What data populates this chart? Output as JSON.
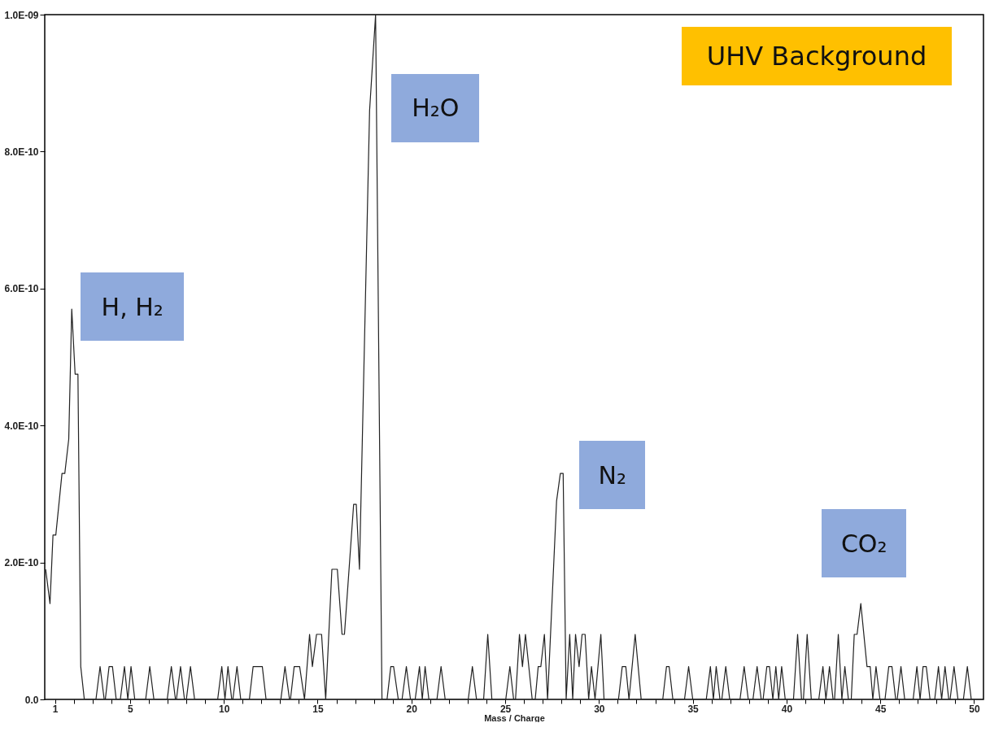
{
  "chart_data": {
    "type": "line",
    "xlabel": "Mass / Charge",
    "annotations": [
      "UHV Background",
      {
        "text": "H, H₂",
        "x": 1.89,
        "y": 5.7e-10
      },
      {
        "text": "H₂O",
        "x": 17.77,
        "y": 8.6e-10
      },
      {
        "text": "N₂",
        "x": 28.09,
        "y": 3.3e-10
      },
      {
        "text": "CO₂",
        "x": 43.96,
        "y": 1.4e-10
      }
    ],
    "x": [
      0.5,
      0.73,
      0.89,
      1.04,
      1.37,
      1.52,
      1.73,
      1.89,
      2.07,
      2.22,
      2.37,
      2.56,
      3.18,
      3.4,
      3.62,
      3.68,
      3.88,
      4.06,
      4.26,
      4.48,
      4.7,
      4.88,
      5.05,
      5.25,
      5.83,
      6.05,
      6.27,
      6.98,
      7.2,
      7.42,
      7.47,
      7.69,
      7.9,
      8.0,
      8.22,
      8.44,
      9.67,
      9.89,
      10.06,
      10.22,
      10.42,
      10.48,
      10.7,
      10.9,
      11.36,
      11.56,
      12.05,
      12.25,
      13.04,
      13.26,
      13.5,
      13.55,
      13.75,
      14.04,
      14.3,
      14.57,
      14.72,
      14.94,
      15.21,
      15.43,
      15.76,
      16.05,
      16.3,
      16.43,
      16.92,
      17.06,
      17.23,
      17.77,
      18.09,
      18.43,
      18.7,
      18.9,
      19.05,
      19.3,
      19.5,
      19.73,
      19.95,
      20.2,
      20.43,
      20.58,
      20.73,
      20.93,
      21.36,
      21.58,
      21.8,
      23.03,
      23.25,
      23.47,
      23.85,
      24.07,
      24.29,
      25.03,
      25.25,
      25.45,
      25.55,
      25.76,
      25.92,
      26.08,
      26.44,
      26.6,
      26.76,
      26.9,
      27.09,
      27.26,
      27.74,
      27.94,
      28.09,
      28.25,
      28.44,
      28.6,
      28.75,
      28.94,
      29.1,
      29.26,
      29.45,
      29.6,
      29.79,
      30.1,
      30.27,
      31.04,
      31.24,
      31.43,
      31.6,
      31.93,
      32.25,
      33.4,
      33.6,
      33.74,
      33.94,
      34.56,
      34.78,
      35.0,
      35.72,
      35.94,
      36.1,
      36.25,
      36.45,
      36.55,
      36.76,
      36.97,
      37.52,
      37.74,
      37.96,
      38.21,
      38.43,
      38.65,
      38.75,
      38.95,
      39.09,
      39.27,
      39.43,
      39.58,
      39.74,
      39.93,
      40.37,
      40.59,
      40.8,
      40.9,
      41.1,
      41.32,
      41.72,
      41.94,
      42.1,
      42.29,
      42.48,
      42.56,
      42.76,
      42.95,
      43.11,
      43.3,
      43.45,
      43.61,
      43.76,
      43.96,
      44.29,
      44.46,
      44.6,
      44.77,
      44.98,
      45.25,
      45.45,
      45.62,
      45.82,
      45.9,
      46.1,
      46.3,
      46.75,
      46.95,
      47.12,
      47.28,
      47.45,
      47.65,
      47.9,
      48.1,
      48.27,
      48.45,
      48.65,
      48.72,
      48.93,
      49.14,
      49.43,
      49.64,
      49.85,
      50.47
    ],
    "series": [
      {
        "color": "#222222",
        "values": [
          1.9e-10,
          1.4e-10,
          2.4e-10,
          2.4e-10,
          3.3e-10,
          3.3e-10,
          3.8e-10,
          5.7e-10,
          4.75e-10,
          4.75e-10,
          4.8e-11,
          0,
          0,
          4.8e-11,
          0,
          0,
          4.8e-11,
          4.8e-11,
          0,
          0,
          4.8e-11,
          0,
          4.8e-11,
          0,
          0,
          4.8e-11,
          0,
          0,
          4.8e-11,
          0,
          0,
          4.8e-11,
          0,
          0,
          4.8e-11,
          0,
          0,
          4.8e-11,
          0,
          4.8e-11,
          0,
          0,
          4.8e-11,
          0,
          0,
          4.8e-11,
          4.8e-11,
          0,
          0,
          4.8e-11,
          0,
          0,
          4.8e-11,
          4.8e-11,
          0,
          9.5e-11,
          4.8e-11,
          9.5e-11,
          9.5e-11,
          0,
          1.9e-10,
          1.9e-10,
          9.5e-11,
          9.5e-11,
          2.85e-10,
          2.85e-10,
          1.9e-10,
          8.6e-10,
          1e-09,
          0,
          0,
          4.8e-11,
          4.8e-11,
          0,
          0,
          4.8e-11,
          0,
          0,
          4.8e-11,
          0,
          4.8e-11,
          0,
          0,
          4.8e-11,
          0,
          0,
          4.8e-11,
          0,
          0,
          9.5e-11,
          0,
          0,
          4.8e-11,
          0,
          0,
          9.5e-11,
          4.8e-11,
          9.5e-11,
          0,
          0,
          4.8e-11,
          4.8e-11,
          9.5e-11,
          0,
          2.9e-10,
          3.3e-10,
          3.3e-10,
          0,
          9.5e-11,
          0,
          9.5e-11,
          4.8e-11,
          9.5e-11,
          9.5e-11,
          0,
          4.8e-11,
          0,
          9.5e-11,
          0,
          0,
          4.8e-11,
          4.8e-11,
          0,
          9.5e-11,
          0,
          0,
          4.8e-11,
          4.8e-11,
          0,
          0,
          4.8e-11,
          0,
          0,
          4.8e-11,
          0,
          4.8e-11,
          0,
          0,
          4.8e-11,
          0,
          0,
          4.8e-11,
          0,
          0,
          4.8e-11,
          0,
          0,
          4.8e-11,
          4.8e-11,
          0,
          4.8e-11,
          0,
          4.8e-11,
          0,
          0,
          9.5e-11,
          0,
          0,
          9.5e-11,
          0,
          0,
          4.8e-11,
          0,
          4.8e-11,
          0,
          0,
          9.5e-11,
          0,
          4.8e-11,
          0,
          0,
          9.5e-11,
          9.5e-11,
          1.4e-10,
          4.8e-11,
          4.8e-11,
          0,
          4.8e-11,
          0,
          0,
          4.8e-11,
          4.8e-11,
          0,
          0,
          4.8e-11,
          0,
          0,
          4.8e-11,
          0,
          4.8e-11,
          4.8e-11,
          0,
          0,
          4.8e-11,
          0,
          4.8e-11,
          0,
          0,
          4.8e-11,
          0,
          0,
          4.8e-11,
          0,
          0
        ]
      }
    ],
    "xlim": [
      0.45,
      50.5
    ],
    "ylim": [
      0,
      1e-09
    ],
    "xticks": [
      1,
      {
        "value": 2,
        "label": null
      },
      {
        "value": 3,
        "label": null
      },
      {
        "value": 4,
        "label": null
      },
      5,
      {
        "value": 6,
        "label": null
      },
      {
        "value": 7,
        "label": null
      },
      {
        "value": 8,
        "label": null
      },
      {
        "value": 9,
        "label": null
      },
      10,
      {
        "value": 11,
        "label": null
      },
      {
        "value": 12,
        "label": null
      },
      {
        "value": 13,
        "label": null
      },
      {
        "value": 14,
        "label": null
      },
      15,
      {
        "value": 16,
        "label": null
      },
      {
        "value": 17,
        "label": null
      },
      {
        "value": 18,
        "label": null
      },
      {
        "value": 19,
        "label": null
      },
      20,
      {
        "value": 21,
        "label": null
      },
      {
        "value": 22,
        "label": null
      },
      {
        "value": 23,
        "label": null
      },
      {
        "value": 24,
        "label": null
      },
      25,
      {
        "value": 26,
        "label": null
      },
      {
        "value": 27,
        "label": null
      },
      {
        "value": 28,
        "label": null
      },
      {
        "value": 29,
        "label": null
      },
      30,
      {
        "value": 31,
        "label": null
      },
      {
        "value": 32,
        "label": null
      },
      {
        "value": 33,
        "label": null
      },
      {
        "value": 34,
        "label": null
      },
      35,
      {
        "value": 36,
        "label": null
      },
      {
        "value": 37,
        "label": null
      },
      {
        "value": 38,
        "label": null
      },
      {
        "value": 39,
        "label": null
      },
      40,
      {
        "value": 41,
        "label": null
      },
      {
        "value": 42,
        "label": null
      },
      {
        "value": 43,
        "label": null
      },
      {
        "value": 44,
        "label": null
      },
      45,
      {
        "value": 46,
        "label": null
      },
      {
        "value": 47,
        "label": null
      },
      {
        "value": 48,
        "label": null
      },
      {
        "value": 49,
        "label": null
      },
      50
    ],
    "yticks": [
      {
        "value": 0,
        "label": "0.0"
      },
      {
        "value": 2e-10,
        "label": "2.0E-10"
      },
      {
        "value": 4e-10,
        "label": "4.0E-10"
      },
      {
        "value": 6e-10,
        "label": "6.0E-10"
      },
      {
        "value": 8e-10,
        "label": "8.0E-10"
      },
      {
        "value": 1e-09,
        "label": "1.0E-09"
      }
    ]
  }
}
